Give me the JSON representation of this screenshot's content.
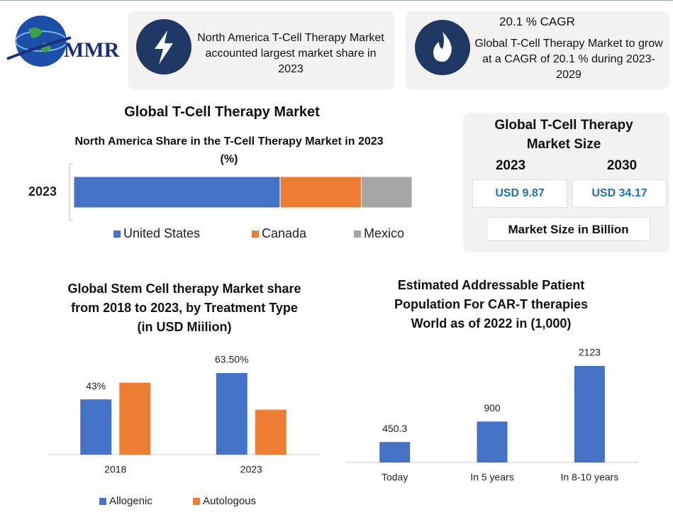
{
  "logo": {
    "text": "MMR"
  },
  "highlights": [
    {
      "text": "North America T-Cell Therapy Market accounted largest market share in 2023"
    },
    {
      "title": "20.1 % CAGR",
      "text": "Global T-Cell Therapy Market to grow at a CAGR of 20.1 % during 2023-2029"
    }
  ],
  "market_size": {
    "title": "Global T-Cell Therapy Market Size",
    "columns": [
      {
        "year": "2023",
        "value": "USD 9.87"
      },
      {
        "year": "2030",
        "value": "USD 34.17"
      }
    ],
    "note": "Market Size in Billion"
  },
  "chart_data": [
    {
      "type": "bar",
      "orientation": "horizontal",
      "stacked": true,
      "title": "Global T-Cell Therapy Market",
      "subtitle": "North America Share in the T-Cell Therapy Market in 2023 (%)",
      "categories": [
        "2023"
      ],
      "series": [
        {
          "name": "United States",
          "color": "#4472c4",
          "values": [
            61
          ]
        },
        {
          "name": "Canada",
          "color": "#ed7d31",
          "values": [
            24
          ]
        },
        {
          "name": "Mexico",
          "color": "#a5a5a5",
          "values": [
            15
          ]
        }
      ],
      "legend": "bottom"
    },
    {
      "type": "bar",
      "title": "Global Stem Cell therapy Market share from 2018 to 2023, by Treatment Type (in USD Miilion)",
      "categories": [
        "2018",
        "2023"
      ],
      "series": [
        {
          "name": "Allogenic",
          "color": "#4472c4",
          "values": [
            43,
            63.5
          ],
          "value_labels": [
            "43%",
            "63.50%"
          ]
        },
        {
          "name": "Autologous",
          "color": "#ed7d31",
          "values": [
            56,
            35
          ]
        }
      ],
      "legend": "bottom"
    },
    {
      "type": "bar",
      "title": "Estimated Addressable Patient Population For CAR-T therapies World as of 2022 in (1,000)",
      "categories": [
        "Today",
        "In 5 years",
        "In 8-10 years"
      ],
      "values": [
        450.3,
        900,
        2123
      ],
      "color": "#4472c4"
    }
  ]
}
